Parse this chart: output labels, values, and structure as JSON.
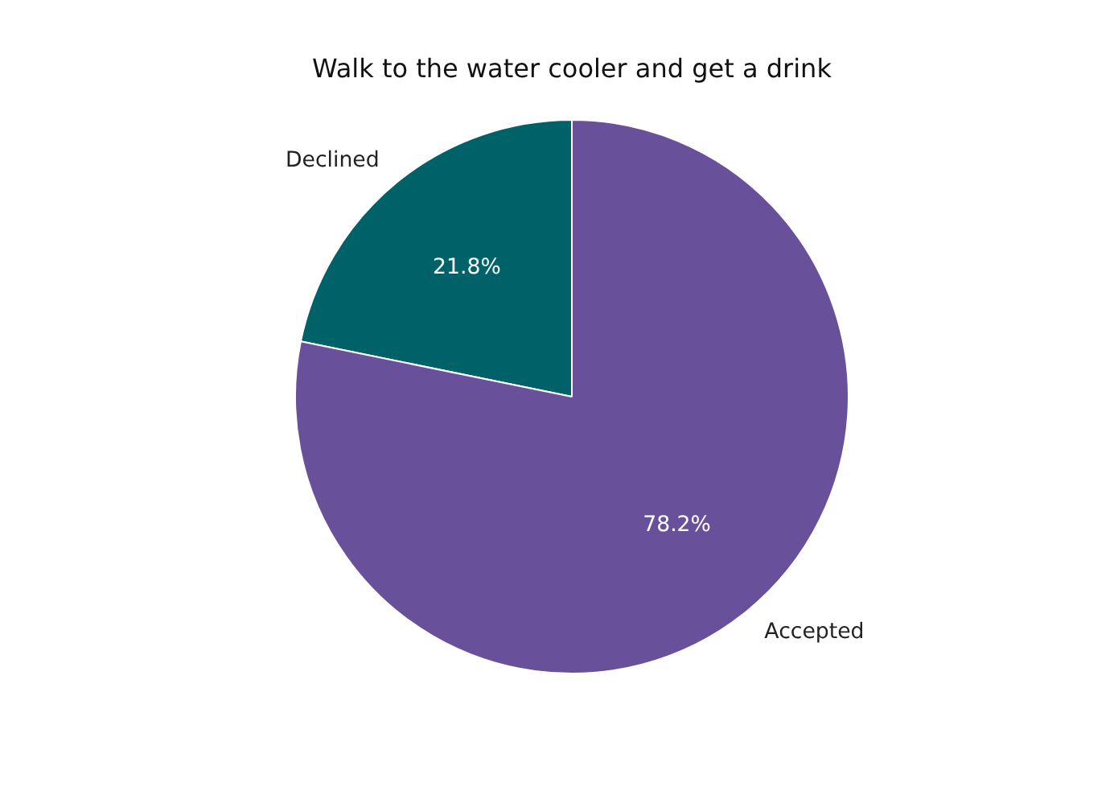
{
  "chart_data": {
    "type": "pie",
    "title": "Walk to the water cooler and get a drink",
    "categories": [
      "Declined",
      "Accepted"
    ],
    "values": [
      21.8,
      78.2
    ],
    "value_labels": [
      "21.8%",
      "78.2%"
    ],
    "colors": [
      "#006269",
      "#68509a"
    ]
  }
}
